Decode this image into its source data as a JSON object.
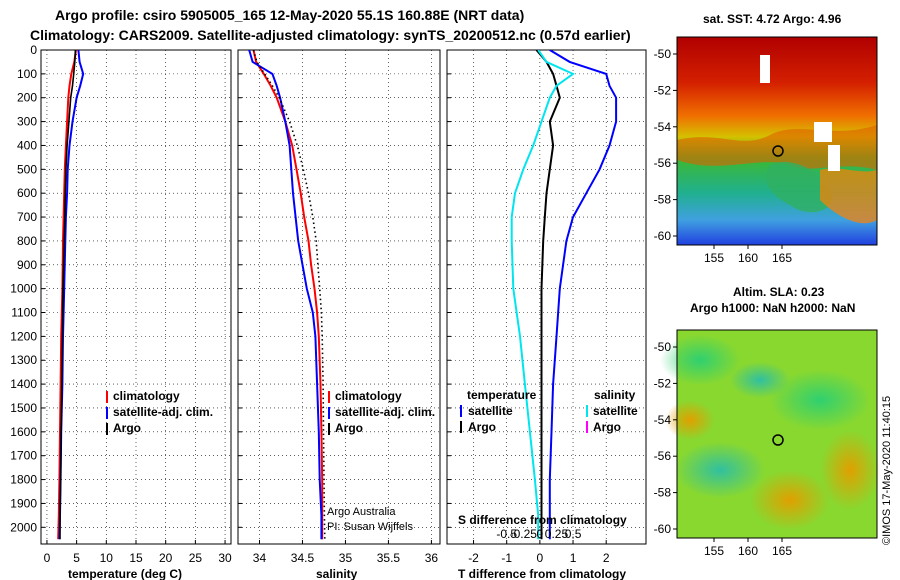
{
  "header": {
    "line1": "Argo profile: csiro 5905005_165 12-May-2020 55.1S 160.88E (NRT data)",
    "line2": "Climatology: CARS2009. Satellite-adjusted climatology: synTS_20200512.nc (0.57d earlier)"
  },
  "depth_ticks": [
    "0",
    "100",
    "200",
    "300",
    "400",
    "500",
    "600",
    "700",
    "800",
    "900",
    "1000",
    "1100",
    "1200",
    "1300",
    "1400",
    "1500",
    "1600",
    "1700",
    "1800",
    "1900",
    "2000"
  ],
  "chart_data": [
    {
      "type": "line",
      "panel": "temperature",
      "xlabel": "temperature (deg C)",
      "xlim": [
        -1,
        31
      ],
      "ylim": [
        2070,
        0
      ],
      "xticks": [
        "0",
        "5",
        "10",
        "15",
        "20",
        "25",
        "30"
      ],
      "depth": [
        0,
        50,
        100,
        150,
        200,
        300,
        400,
        500,
        600,
        700,
        800,
        1000,
        1200,
        1400,
        1600,
        1800,
        1950,
        2050
      ],
      "series": [
        {
          "name": "climatology",
          "color": "#ff0000",
          "values": [
            4.9,
            4.6,
            4.1,
            3.8,
            3.6,
            3.4,
            3.2,
            3.0,
            2.9,
            2.8,
            2.7,
            2.6,
            2.4,
            2.3,
            2.2,
            2.1,
            2.0,
            1.9
          ]
        },
        {
          "name": "satellite-adj. clim.",
          "color": "#0000ff",
          "values": [
            5.3,
            5.5,
            6.1,
            5.6,
            5.0,
            4.3,
            3.8,
            3.5,
            3.4,
            3.2,
            3.1,
            2.9,
            2.7,
            2.6,
            2.4,
            2.3,
            2.2,
            2.1
          ]
        },
        {
          "name": "Argo",
          "color": "#000000",
          "dotted": true,
          "values": [
            4.8,
            4.7,
            4.5,
            4.3,
            4.0,
            3.7,
            3.4,
            3.2,
            3.1,
            3.0,
            2.9,
            2.7,
            2.6,
            2.5,
            2.4,
            2.3,
            2.2,
            2.2
          ]
        }
      ],
      "legend": [
        "climatology",
        "satellite-adj. clim.",
        "Argo"
      ]
    },
    {
      "type": "line",
      "panel": "salinity",
      "xlabel": "salinity",
      "xlim": [
        33.75,
        36.1
      ],
      "ylim": [
        2070,
        0
      ],
      "xticks": [
        "34",
        "34.5",
        "35",
        "35.5",
        "36"
      ],
      "depth": [
        0,
        50,
        100,
        150,
        200,
        300,
        400,
        500,
        600,
        700,
        800,
        900,
        1000,
        1100,
        1200,
        1400,
        1600,
        1800,
        1950,
        2050
      ],
      "series": [
        {
          "name": "climatology",
          "color": "#ff0000",
          "values": [
            33.93,
            33.96,
            34.05,
            34.13,
            34.2,
            34.3,
            34.38,
            34.43,
            34.48,
            34.52,
            34.57,
            34.6,
            34.64,
            34.67,
            34.69,
            34.71,
            34.72,
            34.73,
            34.73,
            34.73
          ]
        },
        {
          "name": "satellite-adj. clim.",
          "color": "#0000ff",
          "values": [
            33.88,
            33.92,
            34.15,
            34.2,
            34.24,
            34.3,
            34.35,
            34.37,
            34.39,
            34.42,
            34.45,
            34.5,
            34.55,
            34.62,
            34.65,
            34.67,
            34.69,
            34.7,
            34.72,
            34.72
          ]
        },
        {
          "name": "Argo",
          "color": "#000000",
          "dotted": true,
          "values": [
            33.93,
            33.97,
            34.06,
            34.15,
            34.23,
            34.35,
            34.44,
            34.51,
            34.57,
            34.62,
            34.66,
            34.68,
            34.7,
            34.72,
            34.73,
            34.74,
            34.745,
            34.75,
            34.755,
            34.76
          ]
        }
      ],
      "legend": [
        "climatology",
        "satellite-adj. clim.",
        "Argo"
      ],
      "annotations": [
        "Argo Australia",
        "PI: Susan Wijffels"
      ]
    },
    {
      "type": "line",
      "panel": "difference",
      "xlabel": "T difference from climatology",
      "xlim": [
        -2.8,
        3.2
      ],
      "ylim": [
        2070,
        0
      ],
      "xticks": [
        "-2",
        "-1",
        "0",
        "1",
        "2"
      ],
      "top_axis_label": "S difference from climatology",
      "top_axis_ticks": [
        "-0.5",
        "-0.25",
        "0",
        "0.25",
        "0.5"
      ],
      "depth": [
        0,
        50,
        100,
        150,
        200,
        300,
        400,
        500,
        600,
        700,
        800,
        1000,
        1200,
        1400,
        1600,
        1800,
        1950,
        2050
      ],
      "series": [
        {
          "name": "temperature satellite",
          "color": "#0000ff",
          "values": [
            0.3,
            0.9,
            2.0,
            2.1,
            2.3,
            2.3,
            2.1,
            1.8,
            1.4,
            1.0,
            0.8,
            0.6,
            0.5,
            0.4,
            0.35,
            0.3,
            0.3,
            0.3
          ]
        },
        {
          "name": "temperature Argo",
          "color": "#000000",
          "values": [
            -0.1,
            0.2,
            0.4,
            0.5,
            0.6,
            0.3,
            0.4,
            0.3,
            0.2,
            0.15,
            0.1,
            0.05,
            0.05,
            0.05,
            0.05,
            0.05,
            0.05,
            0.05
          ]
        },
        {
          "name": "salinity satellite",
          "color": "#00e5ee",
          "values": [
            -0.05,
            0.2,
            1.0,
            0.5,
            0.3,
            0.05,
            -0.2,
            -0.5,
            -0.75,
            -0.85,
            -0.85,
            -0.8,
            -0.6,
            -0.45,
            -0.3,
            -0.15,
            -0.05,
            -0.05
          ]
        }
      ],
      "legend_left_title": "temperature",
      "legend_right_title": "salinity",
      "legend_left": [
        "satellite",
        "Argo"
      ],
      "legend_right": [
        "satellite",
        "Argo"
      ]
    }
  ],
  "maps": {
    "sst": {
      "title": "sat. SST: 4.72 Argo: 4.96",
      "lat_ticks": [
        "-50",
        "-52",
        "-54",
        "-56",
        "-58",
        "-60"
      ],
      "lon_ticks": [
        "155",
        "160",
        "165"
      ],
      "float_position": {
        "lon": 160.88,
        "lat": -55.1
      }
    },
    "sla": {
      "title1": "Altim. SLA: 0.23",
      "title2": "Argo h1000: NaN h2000: NaN",
      "lat_ticks": [
        "-50",
        "-52",
        "-54",
        "-56",
        "-58",
        "-60"
      ],
      "lon_ticks": [
        "155",
        "160",
        "165"
      ],
      "float_position": {
        "lon": 160.88,
        "lat": -55.1
      }
    }
  },
  "credit": "©IMOS 17-May-2020 11:40:15"
}
